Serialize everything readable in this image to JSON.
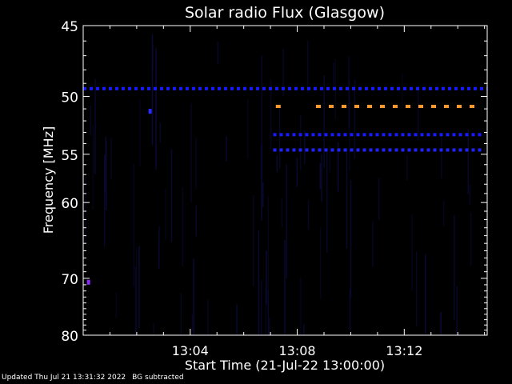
{
  "footer": {
    "updated": "Updated Thu Jul 21 13:31:32 2022",
    "note": "BG subtracted"
  },
  "colors": {
    "background": "#000000",
    "axis": "#ffffff",
    "blue_band": "#1a1aff",
    "orange_band": "#ff9a2a",
    "noise": "#0b0b3a"
  },
  "chart_data": {
    "type": "heatmap",
    "title": "Solar radio Flux (Glasgow)",
    "xlabel": "Start Time (21-Jul-22 13:00:00)",
    "ylabel": "Frequency [MHz]",
    "xlim_minutes": [
      0,
      15.1
    ],
    "ylim_mhz": [
      45,
      80
    ],
    "y_scale": "reciprocal-like (top 45 MHz, bottom 80 MHz)",
    "x_ticks": [
      {
        "minute": 4,
        "label": "13:04"
      },
      {
        "minute": 8,
        "label": "13:08"
      },
      {
        "minute": 12,
        "label": "13:12"
      }
    ],
    "y_ticks": [
      {
        "mhz": 45,
        "label": "45"
      },
      {
        "mhz": 50,
        "label": "50"
      },
      {
        "mhz": 55,
        "label": "55"
      },
      {
        "mhz": 60,
        "label": "60"
      },
      {
        "mhz": 70,
        "label": "70"
      },
      {
        "mhz": 80,
        "label": "80"
      }
    ],
    "bands": [
      {
        "freq_mhz": 49.4,
        "minute_start": 0,
        "minute_end": 15.1,
        "color": "#1a1aff"
      },
      {
        "freq_mhz": 50.8,
        "minute_start": 7.2,
        "minute_end": 7.4,
        "color": "#ff9a2a"
      },
      {
        "freq_mhz": 50.8,
        "minute_start": 8.7,
        "minute_end": 14.8,
        "color": "#ff9a2a"
      },
      {
        "freq_mhz": 53.2,
        "minute_start": 7.1,
        "minute_end": 15.0,
        "color": "#1a1aff"
      },
      {
        "freq_mhz": 54.6,
        "minute_start": 7.1,
        "minute_end": 15.0,
        "color": "#2222ff"
      }
    ],
    "spots": [
      {
        "minute": 0.2,
        "freq_mhz": 70.6,
        "color": "#8a2aff"
      },
      {
        "minute": 2.5,
        "freq_mhz": 51.2,
        "color": "#2a2aff"
      }
    ]
  }
}
